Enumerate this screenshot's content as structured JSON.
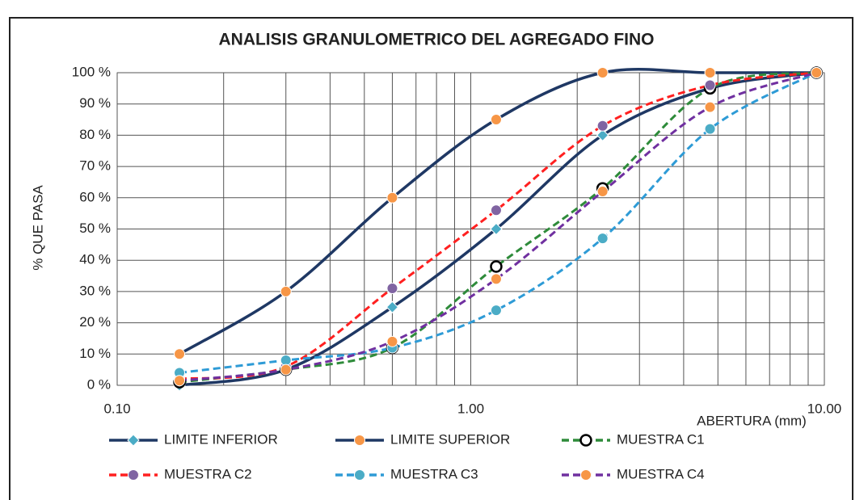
{
  "chart_data": {
    "type": "line",
    "title": "ANALISIS GRANULOMETRICO DEL AGREGADO FINO",
    "x_label": "ABERTURA (mm)",
    "y_label": "% QUE PASA",
    "x_scale": "log",
    "x": [
      0.15,
      0.3,
      0.6,
      1.18,
      2.36,
      4.75,
      9.5
    ],
    "series": [
      {
        "name": "LIMITE INFERIOR",
        "color": "#1f3864",
        "marker": "diamond",
        "marker_color": "#4bacc6",
        "dash": false,
        "values": [
          0,
          5,
          25,
          50,
          80,
          95,
          100
        ]
      },
      {
        "name": "LIMITE SUPERIOR",
        "color": "#1f3864",
        "marker": "circle",
        "marker_color": "#f79646",
        "dash": false,
        "values": [
          10,
          30,
          60,
          85,
          100,
          100,
          100
        ]
      },
      {
        "name": "MUESTRA C1",
        "color": "#2e8b3a",
        "marker": "circle",
        "marker_color": "#ffffff",
        "dash": true,
        "values": [
          1,
          5,
          12,
          38,
          63,
          95,
          100
        ]
      },
      {
        "name": "MUESTRA C2",
        "color": "#ff2020",
        "marker": "circle",
        "marker_color": "#8064a2",
        "dash": true,
        "values": [
          2,
          6,
          31,
          56,
          83,
          96,
          100
        ]
      },
      {
        "name": "MUESTRA C3",
        "color": "#2e9bd6",
        "marker": "circle",
        "marker_color": "#4bacc6",
        "dash": true,
        "values": [
          4,
          8,
          12,
          24,
          47,
          82,
          100
        ]
      },
      {
        "name": "MUESTRA C4",
        "color": "#7030a0",
        "marker": "circle",
        "marker_color": "#f79646",
        "dash": true,
        "values": [
          1.5,
          5,
          14,
          34,
          62,
          89,
          100
        ]
      }
    ],
    "xlim": [
      0.1,
      10
    ],
    "xticks": [
      {
        "value": 0.1,
        "label": "0.10"
      },
      {
        "value": 1,
        "label": "1.00"
      },
      {
        "value": 10,
        "label": "10.00"
      }
    ],
    "x_minor_grid": [
      0.2,
      0.3,
      0.4,
      0.5,
      0.6,
      0.7,
      0.8,
      0.9,
      2,
      3,
      4,
      5,
      6,
      7,
      8,
      9
    ],
    "ylim": [
      0,
      100
    ],
    "yticks": [
      {
        "value": 0,
        "label": "0 %"
      },
      {
        "value": 10,
        "label": "10 %"
      },
      {
        "value": 20,
        "label": "20 %"
      },
      {
        "value": 30,
        "label": "30 %"
      },
      {
        "value": 40,
        "label": "40 %"
      },
      {
        "value": 50,
        "label": "50 %"
      },
      {
        "value": 60,
        "label": "60 %"
      },
      {
        "value": 70,
        "label": "70 %"
      },
      {
        "value": 80,
        "label": "80 %"
      },
      {
        "value": 90,
        "label": "90 %"
      },
      {
        "value": 100,
        "label": "100 %"
      }
    ],
    "grid": true,
    "legend": "bottom"
  }
}
